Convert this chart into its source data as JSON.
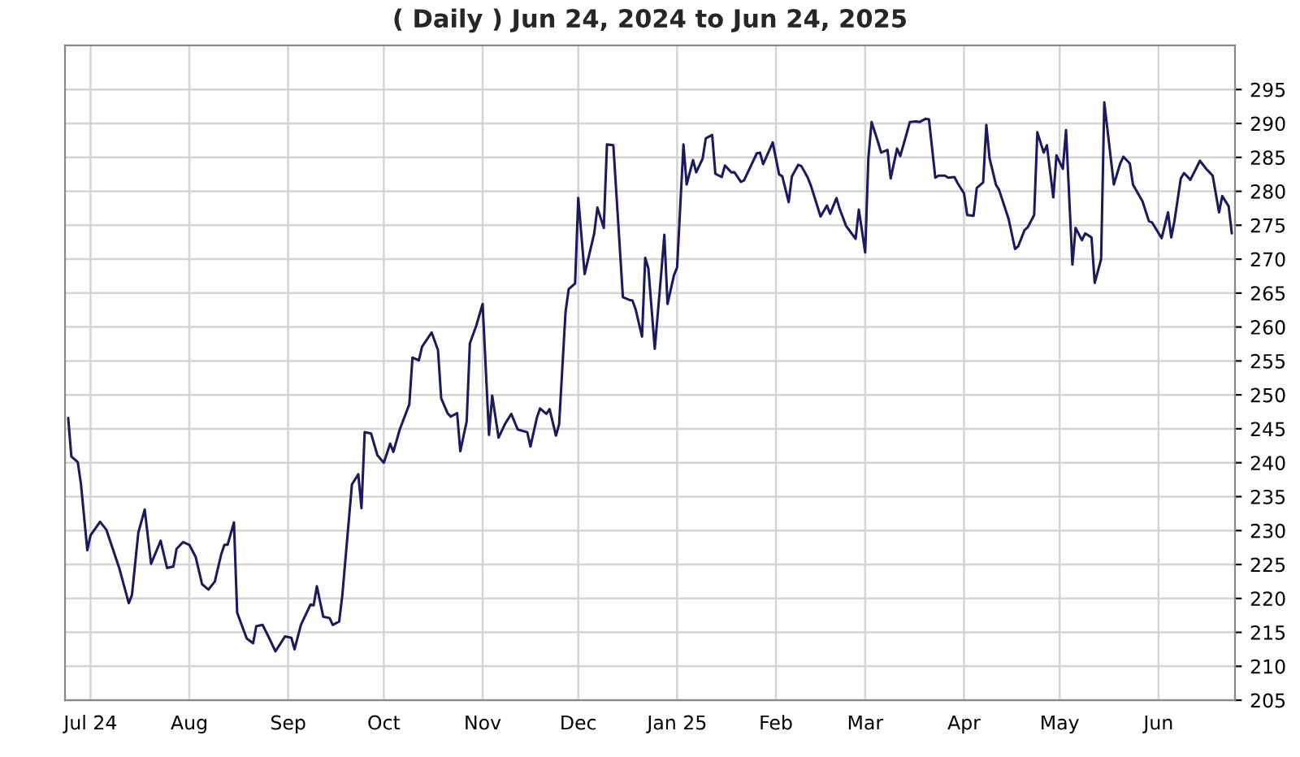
{
  "chart_data": {
    "type": "line",
    "title": "( Daily ) Jun 24, 2024 to Jun 24, 2025",
    "x": [
      "2024-06-24",
      "2024-06-25",
      "2024-06-27",
      "2024-06-28",
      "2024-06-30",
      "2024-07-01",
      "2024-07-04",
      "2024-07-06",
      "2024-07-10",
      "2024-07-13",
      "2024-07-14",
      "2024-07-16",
      "2024-07-18",
      "2024-07-20",
      "2024-07-23",
      "2024-07-25",
      "2024-07-27",
      "2024-07-28",
      "2024-07-30",
      "2024-08-01",
      "2024-08-03",
      "2024-08-05",
      "2024-08-07",
      "2024-08-09",
      "2024-08-11",
      "2024-08-12",
      "2024-08-13",
      "2024-08-15",
      "2024-08-16",
      "2024-08-19",
      "2024-08-21",
      "2024-08-22",
      "2024-08-24",
      "2024-08-26",
      "2024-08-28",
      "2024-08-31",
      "2024-09-02",
      "2024-09-03",
      "2024-09-05",
      "2024-09-08",
      "2024-09-09",
      "2024-09-10",
      "2024-09-12",
      "2024-09-14",
      "2024-09-15",
      "2024-09-17",
      "2024-09-18",
      "2024-09-21",
      "2024-09-23",
      "2024-09-24",
      "2024-09-25",
      "2024-09-27",
      "2024-09-29",
      "2024-10-01",
      "2024-10-03",
      "2024-10-04",
      "2024-10-06",
      "2024-10-09",
      "2024-10-10",
      "2024-10-12",
      "2024-10-13",
      "2024-10-16",
      "2024-10-18",
      "2024-10-19",
      "2024-10-21",
      "2024-10-22",
      "2024-10-24",
      "2024-10-25",
      "2024-10-27",
      "2024-10-28",
      "2024-10-30",
      "2024-11-01",
      "2024-11-03",
      "2024-11-04",
      "2024-11-06",
      "2024-11-08",
      "2024-11-10",
      "2024-11-12",
      "2024-11-15",
      "2024-11-16",
      "2024-11-18",
      "2024-11-19",
      "2024-11-21",
      "2024-11-22",
      "2024-11-24",
      "2024-11-25",
      "2024-11-27",
      "2024-11-28",
      "2024-11-30",
      "2024-12-01",
      "2024-12-03",
      "2024-12-06",
      "2024-12-07",
      "2024-12-09",
      "2024-12-10",
      "2024-12-12",
      "2024-12-15",
      "2024-12-17",
      "2024-12-18",
      "2024-12-19",
      "2024-12-21",
      "2024-12-22",
      "2024-12-23",
      "2024-12-25",
      "2024-12-27",
      "2024-12-28",
      "2024-12-29",
      "2024-12-31",
      "2025-01-01",
      "2025-01-03",
      "2025-01-04",
      "2025-01-06",
      "2025-01-07",
      "2025-01-09",
      "2025-01-10",
      "2025-01-12",
      "2025-01-13",
      "2025-01-15",
      "2025-01-16",
      "2025-01-18",
      "2025-01-19",
      "2025-01-21",
      "2025-01-22",
      "2025-01-26",
      "2025-01-27",
      "2025-01-28",
      "2025-01-31",
      "2025-02-02",
      "2025-02-03",
      "2025-02-05",
      "2025-02-06",
      "2025-02-08",
      "2025-02-09",
      "2025-02-11",
      "2025-02-12",
      "2025-02-15",
      "2025-02-17",
      "2025-02-18",
      "2025-02-20",
      "2025-02-21",
      "2025-02-23",
      "2025-02-26",
      "2025-02-27",
      "2025-03-01",
      "2025-03-02",
      "2025-03-03",
      "2025-03-05",
      "2025-03-06",
      "2025-03-08",
      "2025-03-09",
      "2025-03-11",
      "2025-03-12",
      "2025-03-14",
      "2025-03-15",
      "2025-03-17",
      "2025-03-18",
      "2025-03-20",
      "2025-03-21",
      "2025-03-23",
      "2025-03-24",
      "2025-03-26",
      "2025-03-27",
      "2025-03-29",
      "2025-03-30",
      "2025-04-01",
      "2025-04-02",
      "2025-04-04",
      "2025-04-05",
      "2025-04-07",
      "2025-04-08",
      "2025-04-09",
      "2025-04-11",
      "2025-04-12",
      "2025-04-15",
      "2025-04-17",
      "2025-04-18",
      "2025-04-20",
      "2025-04-21",
      "2025-04-23",
      "2025-04-24",
      "2025-04-26",
      "2025-04-27",
      "2025-04-29",
      "2025-04-30",
      "2025-05-02",
      "2025-05-03",
      "2025-05-05",
      "2025-05-06",
      "2025-05-08",
      "2025-05-09",
      "2025-05-11",
      "2025-05-12",
      "2025-05-14",
      "2025-05-15",
      "2025-05-18",
      "2025-05-20",
      "2025-05-21",
      "2025-05-23",
      "2025-05-24",
      "2025-05-27",
      "2025-05-29",
      "2025-05-30",
      "2025-06-02",
      "2025-06-04",
      "2025-06-05",
      "2025-06-06",
      "2025-06-08",
      "2025-06-09",
      "2025-06-11",
      "2025-06-14",
      "2025-06-16",
      "2025-06-18",
      "2025-06-20",
      "2025-06-21",
      "2025-06-23",
      "2025-06-24"
    ],
    "series": [
      {
        "color": "#1a1a5e",
        "values": [
          246.6,
          240.9,
          240.1,
          236.9,
          227.1,
          229.3,
          231.3,
          230.1,
          224.5,
          219.3,
          220.5,
          229.7,
          233.1,
          225.1,
          228.5,
          224.5,
          224.7,
          227.3,
          228.3,
          227.9,
          226.1,
          222.1,
          221.3,
          222.5,
          226.5,
          227.9,
          227.9,
          231.2,
          217.9,
          214.1,
          213.4,
          215.9,
          216.1,
          214.2,
          212.2,
          214.4,
          214.2,
          212.5,
          216.1,
          219.1,
          219.0,
          221.8,
          217.3,
          217.1,
          216.1,
          216.6,
          220.5,
          236.8,
          238.3,
          233.3,
          244.5,
          244.3,
          241.1,
          240.0,
          242.8,
          241.6,
          244.9,
          248.6,
          255.5,
          255.1,
          257.1,
          259.2,
          256.6,
          249.5,
          247.3,
          246.8,
          247.3,
          241.7,
          246.1,
          257.6,
          260.2,
          263.4,
          244.1,
          249.9,
          243.7,
          245.7,
          247.2,
          244.9,
          244.5,
          242.4,
          246.6,
          248.0,
          247.2,
          247.9,
          244.0,
          245.7,
          262.2,
          265.6,
          266.4,
          279.0,
          267.8,
          273.8,
          277.6,
          274.6,
          286.9,
          286.8,
          264.4,
          264.0,
          263.9,
          262.6,
          258.6,
          270.2,
          268.6,
          256.8,
          267.8,
          273.6,
          263.4,
          267.6,
          268.8,
          286.9,
          281.0,
          284.6,
          282.8,
          284.8,
          287.8,
          288.3,
          282.6,
          282.1,
          283.8,
          282.8,
          282.8,
          281.4,
          281.6,
          285.6,
          285.7,
          284.0,
          287.2,
          282.5,
          282.2,
          278.4,
          282.2,
          283.9,
          283.7,
          282.0,
          280.8,
          276.3,
          277.9,
          276.7,
          279.0,
          277.4,
          274.9,
          273.0,
          277.3,
          271.0,
          284.9,
          290.2,
          287.3,
          285.7,
          286.1,
          281.9,
          286.3,
          285.2,
          288.5,
          290.2,
          290.3,
          290.2,
          290.7,
          290.6,
          282.0,
          282.3,
          282.3,
          282.0,
          282.1,
          281.2,
          279.7,
          276.5,
          276.4,
          280.5,
          281.3,
          289.8,
          284.9,
          281.0,
          280.2,
          275.9,
          271.5,
          271.9,
          274.3,
          274.7,
          276.5,
          288.7,
          285.7,
          286.8,
          279.1,
          285.3,
          283.3,
          289.0,
          269.2,
          274.6,
          272.8,
          273.8,
          273.2,
          266.5,
          270.0,
          293.1,
          281.0,
          284.1,
          285.1,
          284.1,
          281.0,
          278.5,
          275.6,
          275.4,
          273.1,
          276.9,
          273.2,
          275.6,
          281.9,
          282.7,
          281.7,
          284.5,
          283.3,
          282.3,
          276.9,
          279.3,
          277.8,
          273.8
        ]
      }
    ],
    "xlim": [
      "2024-06-23",
      "2025-06-25"
    ],
    "xticks": [
      {
        "value": "2024-07-01",
        "label": "Jul 24"
      },
      {
        "value": "2024-08-01",
        "label": "Aug"
      },
      {
        "value": "2024-09-01",
        "label": "Sep"
      },
      {
        "value": "2024-10-01",
        "label": "Oct"
      },
      {
        "value": "2024-11-01",
        "label": "Nov"
      },
      {
        "value": "2024-12-01",
        "label": "Dec"
      },
      {
        "value": "2025-01-01",
        "label": "Jan 25"
      },
      {
        "value": "2025-02-01",
        "label": "Feb"
      },
      {
        "value": "2025-03-01",
        "label": "Mar"
      },
      {
        "value": "2025-04-01",
        "label": "Apr"
      },
      {
        "value": "2025-05-01",
        "label": "May"
      },
      {
        "value": "2025-06-01",
        "label": "Jun"
      }
    ],
    "ylim": [
      205,
      301.5
    ],
    "yticks": [
      205,
      210,
      215,
      220,
      225,
      230,
      235,
      240,
      245,
      250,
      255,
      260,
      265,
      270,
      275,
      280,
      285,
      290,
      295
    ],
    "grid": true
  }
}
